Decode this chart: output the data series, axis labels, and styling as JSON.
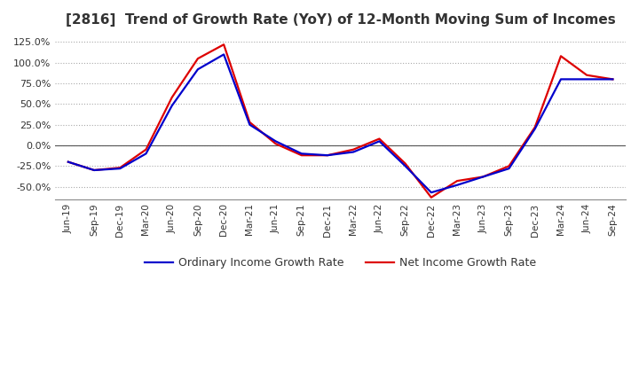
{
  "title": "[2816]  Trend of Growth Rate (YoY) of 12-Month Moving Sum of Incomes",
  "title_fontsize": 11,
  "ylim": [
    -65,
    135
  ],
  "yticks": [
    -50,
    -25,
    0,
    25,
    50,
    75,
    100,
    125
  ],
  "background_color": "#ffffff",
  "grid_color": "#aaaaaa",
  "ordinary_color": "#0000cc",
  "net_color": "#dd0000",
  "line_width": 1.6,
  "x_labels": [
    "Jun-19",
    "Sep-19",
    "Dec-19",
    "Mar-20",
    "Jun-20",
    "Sep-20",
    "Dec-20",
    "Mar-21",
    "Jun-21",
    "Sep-21",
    "Dec-21",
    "Mar-22",
    "Jun-22",
    "Sep-22",
    "Dec-22",
    "Mar-23",
    "Jun-23",
    "Sep-23",
    "Dec-23",
    "Mar-24",
    "Jun-24",
    "Sep-24"
  ],
  "ordinary_income_growth": [
    -20,
    -30,
    -28,
    -10,
    48,
    92,
    110,
    25,
    5,
    -10,
    -12,
    -8,
    5,
    -25,
    -57,
    -48,
    -38,
    -28,
    20,
    80,
    80,
    80
  ],
  "net_income_growth": [
    -20,
    -30,
    -27,
    -5,
    58,
    105,
    122,
    28,
    2,
    -12,
    -12,
    -5,
    8,
    -22,
    -63,
    -43,
    -38,
    -25,
    22,
    108,
    85,
    80
  ],
  "legend_labels": [
    "Ordinary Income Growth Rate",
    "Net Income Growth Rate"
  ]
}
